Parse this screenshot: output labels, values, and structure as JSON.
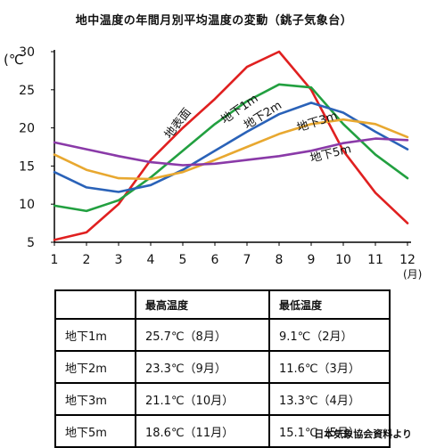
{
  "chart_data": {
    "type": "line",
    "title": "地中温度の年間月別平均温度の変動（銚子気象台）",
    "ylabel": "(℃",
    "xlabel": "(月)",
    "ylim": [
      5,
      30
    ],
    "xlim": [
      1,
      12
    ],
    "yticks": [
      5,
      10,
      15,
      20,
      25,
      30
    ],
    "xticks": [
      1,
      2,
      3,
      4,
      5,
      6,
      7,
      8,
      9,
      10,
      11,
      12
    ],
    "grid": false,
    "legend": "inline-labels",
    "x": [
      1,
      2,
      3,
      4,
      5,
      6,
      7,
      8,
      9,
      10,
      11,
      12
    ],
    "series": [
      {
        "name": "地表面",
        "color": "#e02020",
        "values": [
          5.3,
          6.3,
          10.0,
          15.8,
          20.0,
          23.8,
          28.0,
          30.0,
          25.0,
          17.0,
          11.5,
          7.5
        ]
      },
      {
        "name": "地下1m",
        "color": "#22a040",
        "values": [
          9.8,
          9.1,
          10.5,
          13.5,
          17.0,
          20.5,
          23.5,
          25.7,
          25.3,
          20.5,
          16.5,
          13.4
        ]
      },
      {
        "name": "地下2m",
        "color": "#2a62b8",
        "values": [
          14.2,
          12.2,
          11.6,
          12.5,
          14.5,
          17.0,
          19.5,
          21.8,
          23.3,
          22.0,
          19.5,
          17.2
        ]
      },
      {
        "name": "地下3m",
        "color": "#e8a830",
        "values": [
          16.5,
          14.5,
          13.4,
          13.3,
          14.2,
          15.8,
          17.5,
          19.2,
          20.5,
          21.1,
          20.5,
          18.8
        ]
      },
      {
        "name": "地下5m",
        "color": "#8a3aa8",
        "values": [
          18.1,
          17.2,
          16.3,
          15.5,
          15.1,
          15.3,
          15.8,
          16.3,
          17.0,
          18.0,
          18.6,
          18.4
        ]
      }
    ],
    "labels": [
      {
        "text": "地表面",
        "x": 4.6,
        "y": 18.5
      },
      {
        "text": "地下1m",
        "x": 6.3,
        "y": 20.5
      },
      {
        "text": "地下2m",
        "x": 7.0,
        "y": 19.8
      },
      {
        "text": "地下3m",
        "x": 8.6,
        "y": 19.5
      },
      {
        "text": "地下5m",
        "x": 9.0,
        "y": 15.5
      }
    ]
  },
  "table": {
    "headers": [
      "",
      "最高温度",
      "最低温度"
    ],
    "rows": [
      [
        "地下1m",
        "25.7℃（8月）",
        "9.1℃（2月）"
      ],
      [
        "地下2m",
        "23.3℃（9月）",
        "11.6℃（3月）"
      ],
      [
        "地下3m",
        "21.1℃（10月）",
        "13.3℃（4月）"
      ],
      [
        "地下5m",
        "18.6℃（11月）",
        "15.1℃（5月）"
      ]
    ]
  },
  "source": "日本気象協会資料より"
}
